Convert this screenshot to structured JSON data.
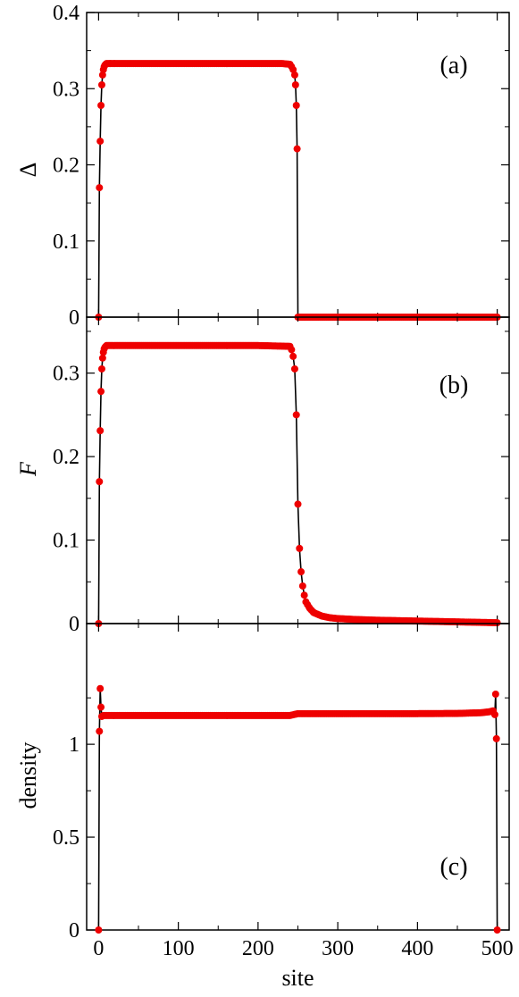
{
  "chart_data": [
    {
      "type": "line",
      "panel_label": "(a)",
      "ylabel": "Δ",
      "xlim": [
        -15,
        515
      ],
      "ylim": [
        0,
        0.4
      ],
      "yticks": [
        0,
        0.1,
        0.2,
        0.3,
        0.4
      ],
      "ytick_labels": [
        "0",
        "0.1",
        "0.2",
        "0.3",
        "0.4"
      ],
      "plateau_value": 0.333,
      "series": [
        {
          "x": [
            0,
            1,
            2,
            3,
            4,
            5,
            6,
            7,
            8,
            9,
            10,
            15,
            20,
            30,
            40,
            50,
            60,
            70,
            80,
            90,
            100,
            110,
            120,
            130,
            140,
            150,
            160,
            170,
            180,
            190,
            200,
            210,
            220,
            230,
            240,
            242,
            244,
            246,
            247,
            248,
            249,
            250,
            251,
            252,
            260,
            280,
            300,
            350,
            400,
            450,
            500
          ],
          "y": [
            0,
            0.17,
            0.231,
            0.278,
            0.305,
            0.318,
            0.325,
            0.329,
            0.331,
            0.332,
            0.333,
            0.333,
            0.333,
            0.333,
            0.333,
            0.333,
            0.333,
            0.333,
            0.333,
            0.333,
            0.333,
            0.333,
            0.333,
            0.333,
            0.333,
            0.333,
            0.333,
            0.333,
            0.333,
            0.333,
            0.333,
            0.333,
            0.333,
            0.333,
            0.332,
            0.329,
            0.325,
            0.318,
            0.305,
            0.278,
            0.221,
            0,
            0,
            0,
            0,
            0,
            0,
            0,
            0,
            0,
            0
          ]
        }
      ]
    },
    {
      "type": "line",
      "panel_label": "(b)",
      "ylabel": "F",
      "xlim": [
        -15,
        515
      ],
      "ylim": [
        0,
        0.367
      ],
      "yticks": [
        0,
        0.1,
        0.2,
        0.3
      ],
      "ytick_labels": [
        "0",
        "0.1",
        "0.2",
        "0.3"
      ],
      "series": [
        {
          "x": [
            0,
            1,
            2,
            3,
            4,
            5,
            6,
            7,
            8,
            9,
            10,
            20,
            50,
            100,
            150,
            200,
            240,
            242,
            244,
            246,
            248,
            250,
            252,
            254,
            256,
            258,
            260,
            265,
            270,
            280,
            290,
            300,
            320,
            350,
            400,
            450,
            500
          ],
          "y": [
            0,
            0.17,
            0.231,
            0.278,
            0.305,
            0.318,
            0.325,
            0.329,
            0.331,
            0.332,
            0.333,
            0.333,
            0.333,
            0.333,
            0.333,
            0.333,
            0.332,
            0.328,
            0.32,
            0.305,
            0.25,
            0.143,
            0.09,
            0.062,
            0.045,
            0.034,
            0.026,
            0.018,
            0.013,
            0.009,
            0.007,
            0.006,
            0.005,
            0.004,
            0.003,
            0.002,
            0.001
          ]
        }
      ]
    },
    {
      "type": "line",
      "panel_label": "(c)",
      "xlabel": "site",
      "ylabel": "density",
      "xlim": [
        -15,
        515
      ],
      "ylim": [
        0,
        1.65
      ],
      "yticks": [
        0,
        0.5,
        1
      ],
      "ytick_labels": [
        "0",
        "0.5",
        "1"
      ],
      "xticks": [
        0,
        100,
        200,
        300,
        400,
        500
      ],
      "xtick_labels": [
        "0",
        "100",
        "200",
        "300",
        "400",
        "500"
      ],
      "series": [
        {
          "x": [
            0,
            1,
            2,
            3,
            4,
            6,
            10,
            50,
            100,
            150,
            200,
            240,
            250,
            260,
            300,
            350,
            400,
            450,
            480,
            490,
            495,
            497,
            498,
            499,
            500
          ],
          "y": [
            0,
            1.07,
            1.3,
            1.2,
            1.15,
            1.155,
            1.155,
            1.155,
            1.155,
            1.155,
            1.155,
            1.155,
            1.165,
            1.165,
            1.165,
            1.165,
            1.165,
            1.166,
            1.17,
            1.175,
            1.18,
            1.16,
            1.27,
            1.03,
            0
          ]
        }
      ]
    }
  ]
}
